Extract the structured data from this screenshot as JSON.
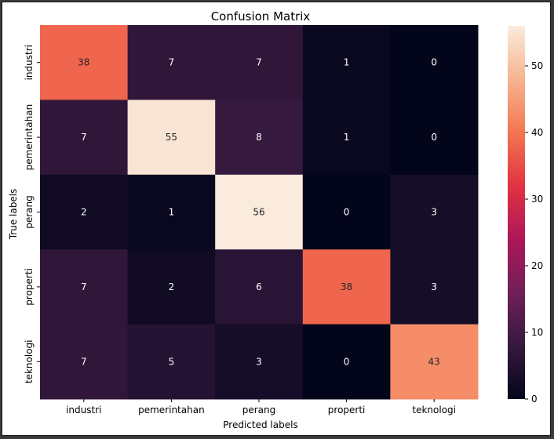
{
  "chart_data": {
    "type": "heatmap",
    "title": "Confusion Matrix",
    "xlabel": "Predicted labels",
    "ylabel": "True labels",
    "x_categories": [
      "industri",
      "pemerintahan",
      "perang",
      "properti",
      "teknologi"
    ],
    "y_categories": [
      "industri",
      "pemerintahan",
      "perang",
      "properti",
      "teknologi"
    ],
    "values": [
      [
        38,
        7,
        7,
        1,
        0
      ],
      [
        7,
        55,
        8,
        1,
        0
      ],
      [
        2,
        1,
        56,
        0,
        3
      ],
      [
        7,
        2,
        6,
        38,
        3
      ],
      [
        7,
        5,
        3,
        0,
        43
      ]
    ],
    "colorbar": {
      "range": [
        0,
        56
      ],
      "ticks": [
        0,
        10,
        20,
        30,
        40,
        50
      ]
    },
    "colormap": [
      "#03051a",
      "#36193e",
      "#701f57",
      "#ad1759",
      "#e13342",
      "#f37651",
      "#f6b48f",
      "#faebdd"
    ]
  }
}
